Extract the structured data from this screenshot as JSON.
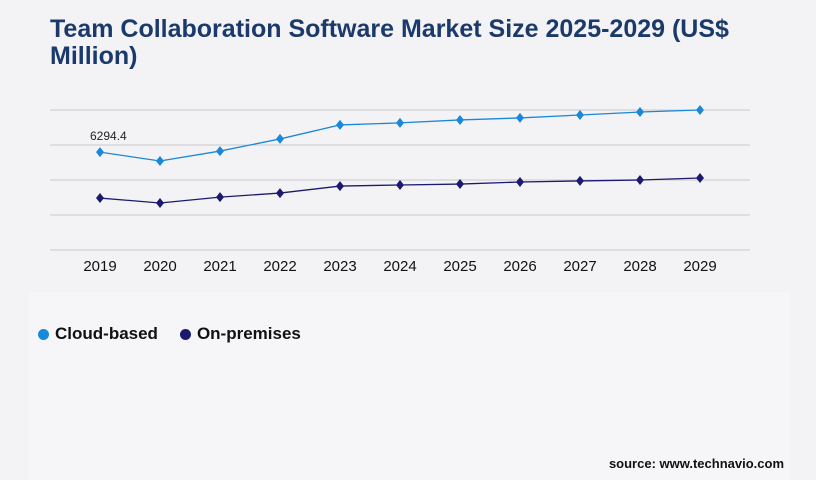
{
  "chart_data": {
    "type": "line",
    "title": "Team Collaboration Software Market Size 2025-2029 (US$ Million)",
    "categories": [
      "2019",
      "2020",
      "2021",
      "2022",
      "2023",
      "2024",
      "2025",
      "2026",
      "2027",
      "2028",
      "2029"
    ],
    "series": [
      {
        "name": "Cloud-based",
        "color": "#1a87d8",
        "values": [
          6294.4,
          5720,
          6360,
          7140,
          8040,
          8170,
          8360,
          8490,
          8680,
          8870,
          9000
        ]
      },
      {
        "name": "On-premises",
        "color": "#1b1a6e",
        "values": [
          3340,
          3020,
          3400,
          3660,
          4110,
          4180,
          4240,
          4370,
          4440,
          4500,
          4630
        ]
      }
    ],
    "data_labels": [
      {
        "series": "Cloud-based",
        "category": "2019",
        "text": "6294.4"
      }
    ],
    "ylim": [
      0,
      9000
    ],
    "gridlines": [
      0,
      2250,
      4500,
      6750,
      9000
    ],
    "grid": true,
    "y_tick_labels_shown": false,
    "legend_placement": "bottom-left",
    "marker": "diamond"
  },
  "source": "source: www.technavio.com"
}
